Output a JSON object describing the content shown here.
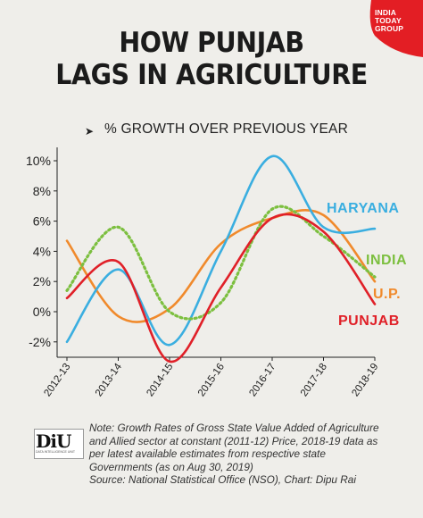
{
  "brand": {
    "name_line1": "INDIA",
    "name_line2": "TODAY",
    "name_line3": "GROUP",
    "color": "#e31e24"
  },
  "title_line1": "HOW PUNJAB",
  "title_line2": "LAGS IN AGRICULTURE",
  "subtitle": "% GROWTH OVER PREVIOUS YEAR",
  "chart_data": {
    "type": "line",
    "title": "HOW PUNJAB LAGS IN AGRICULTURE",
    "subtitle": "% GROWTH OVER PREVIOUS YEAR",
    "x": [
      "2012-13",
      "2013-14",
      "2014-15",
      "2015-16",
      "2016-17",
      "2017-18",
      "2018-19"
    ],
    "y_ticks": [
      "-2%",
      "0%",
      "2%",
      "4%",
      "6%",
      "8%",
      "10%"
    ],
    "y_tick_values": [
      -2,
      0,
      2,
      4,
      6,
      8,
      10
    ],
    "ylim": [
      -3.5,
      10.5
    ],
    "grid": false,
    "legend": "labels at line ends",
    "series": [
      {
        "name": "HARYANA",
        "color": "#3aaee0",
        "dashed": false,
        "values": [
          -2.0,
          2.8,
          -2.2,
          4.0,
          10.3,
          5.6,
          5.5
        ]
      },
      {
        "name": "INDIA",
        "color": "#7cbf3f",
        "dashed": true,
        "values": [
          1.4,
          5.6,
          0.0,
          0.6,
          6.8,
          5.0,
          2.3
        ]
      },
      {
        "name": "U.P.",
        "color": "#f08a2c",
        "dashed": false,
        "values": [
          4.7,
          -0.3,
          0.2,
          4.5,
          6.2,
          6.4,
          2.0
        ]
      },
      {
        "name": "PUNJAB",
        "color": "#e02028",
        "dashed": false,
        "values": [
          0.9,
          3.3,
          -3.3,
          1.6,
          6.2,
          5.3,
          0.5
        ]
      }
    ]
  },
  "note": {
    "line1": "Note: Growth Rates of Gross State Value Added of Agriculture",
    "line2": "and Allied sector at constant (2011-12) Price, 2018-19 data as",
    "line3": "per latest available estimates from respective state",
    "line4": "Governments (as on Aug 30, 2019)",
    "line5": "Source: National Statistical Office (NSO), Chart: Dipu Rai"
  },
  "diu": {
    "logo_text": "DiU",
    "tagline": "DATA INTELLIGENCE UNIT"
  }
}
